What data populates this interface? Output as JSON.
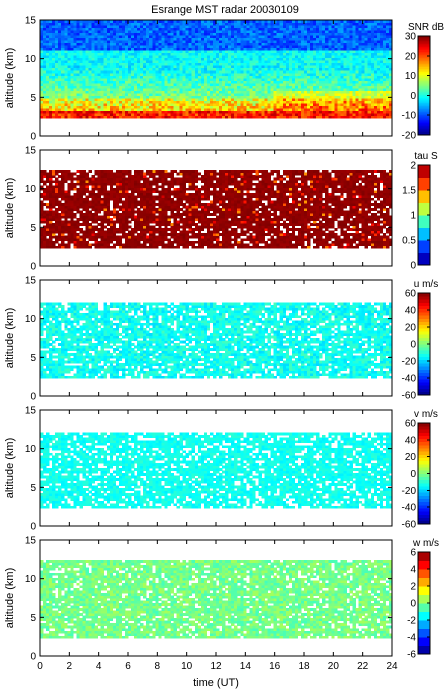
{
  "chart_data": {
    "type": "heatmap",
    "title": "Esrange MST radar 20030109",
    "xlabel": "time (UT)",
    "xlim": [
      0,
      24
    ],
    "x_ticks": [
      "0",
      "2",
      "4",
      "6",
      "8",
      "10",
      "12",
      "14",
      "16",
      "18",
      "20",
      "22",
      "24"
    ],
    "panels": [
      {
        "id": "snr",
        "ylabel": "altitude (km)",
        "ylim": [
          0,
          15
        ],
        "y_ticks": [
          "0",
          "5",
          "10",
          "15"
        ],
        "colorbar_label": "SNR dB",
        "clim": [
          -20,
          30
        ],
        "colorbar_ticks": [
          "30",
          "20",
          "10",
          "0",
          "-10",
          "-20"
        ]
      },
      {
        "id": "tau",
        "ylabel": "altitude (km)",
        "ylim": [
          0,
          15
        ],
        "y_ticks": [
          "0",
          "5",
          "10",
          "15"
        ],
        "colorbar_label": "tau S",
        "clim": [
          0,
          2
        ],
        "colorbar_ticks": [
          "2",
          "1.5",
          "1",
          "0.5",
          "0"
        ]
      },
      {
        "id": "u",
        "ylabel": "altitude (km)",
        "ylim": [
          0,
          15
        ],
        "y_ticks": [
          "0",
          "5",
          "10",
          "15"
        ],
        "colorbar_label": "u m/s",
        "clim": [
          -60,
          60
        ],
        "colorbar_ticks": [
          "60",
          "40",
          "20",
          "0",
          "-20",
          "-40",
          "-60"
        ]
      },
      {
        "id": "v",
        "ylabel": "altitude (km)",
        "ylim": [
          0,
          15
        ],
        "y_ticks": [
          "0",
          "5",
          "10",
          "15"
        ],
        "colorbar_label": "v m/s",
        "clim": [
          -60,
          60
        ],
        "colorbar_ticks": [
          "60",
          "40",
          "20",
          "0",
          "-20",
          "-40",
          "-60"
        ]
      },
      {
        "id": "w",
        "ylabel": "altitude (km)",
        "ylim": [
          0,
          15
        ],
        "y_ticks": [
          "0",
          "5",
          "10",
          "15"
        ],
        "colorbar_label": "w m/s",
        "clim": [
          -6,
          6
        ],
        "colorbar_ticks": [
          "6",
          "4",
          "2",
          "0",
          "-2",
          "-4",
          "-6"
        ]
      }
    ],
    "colormap": "jet"
  }
}
